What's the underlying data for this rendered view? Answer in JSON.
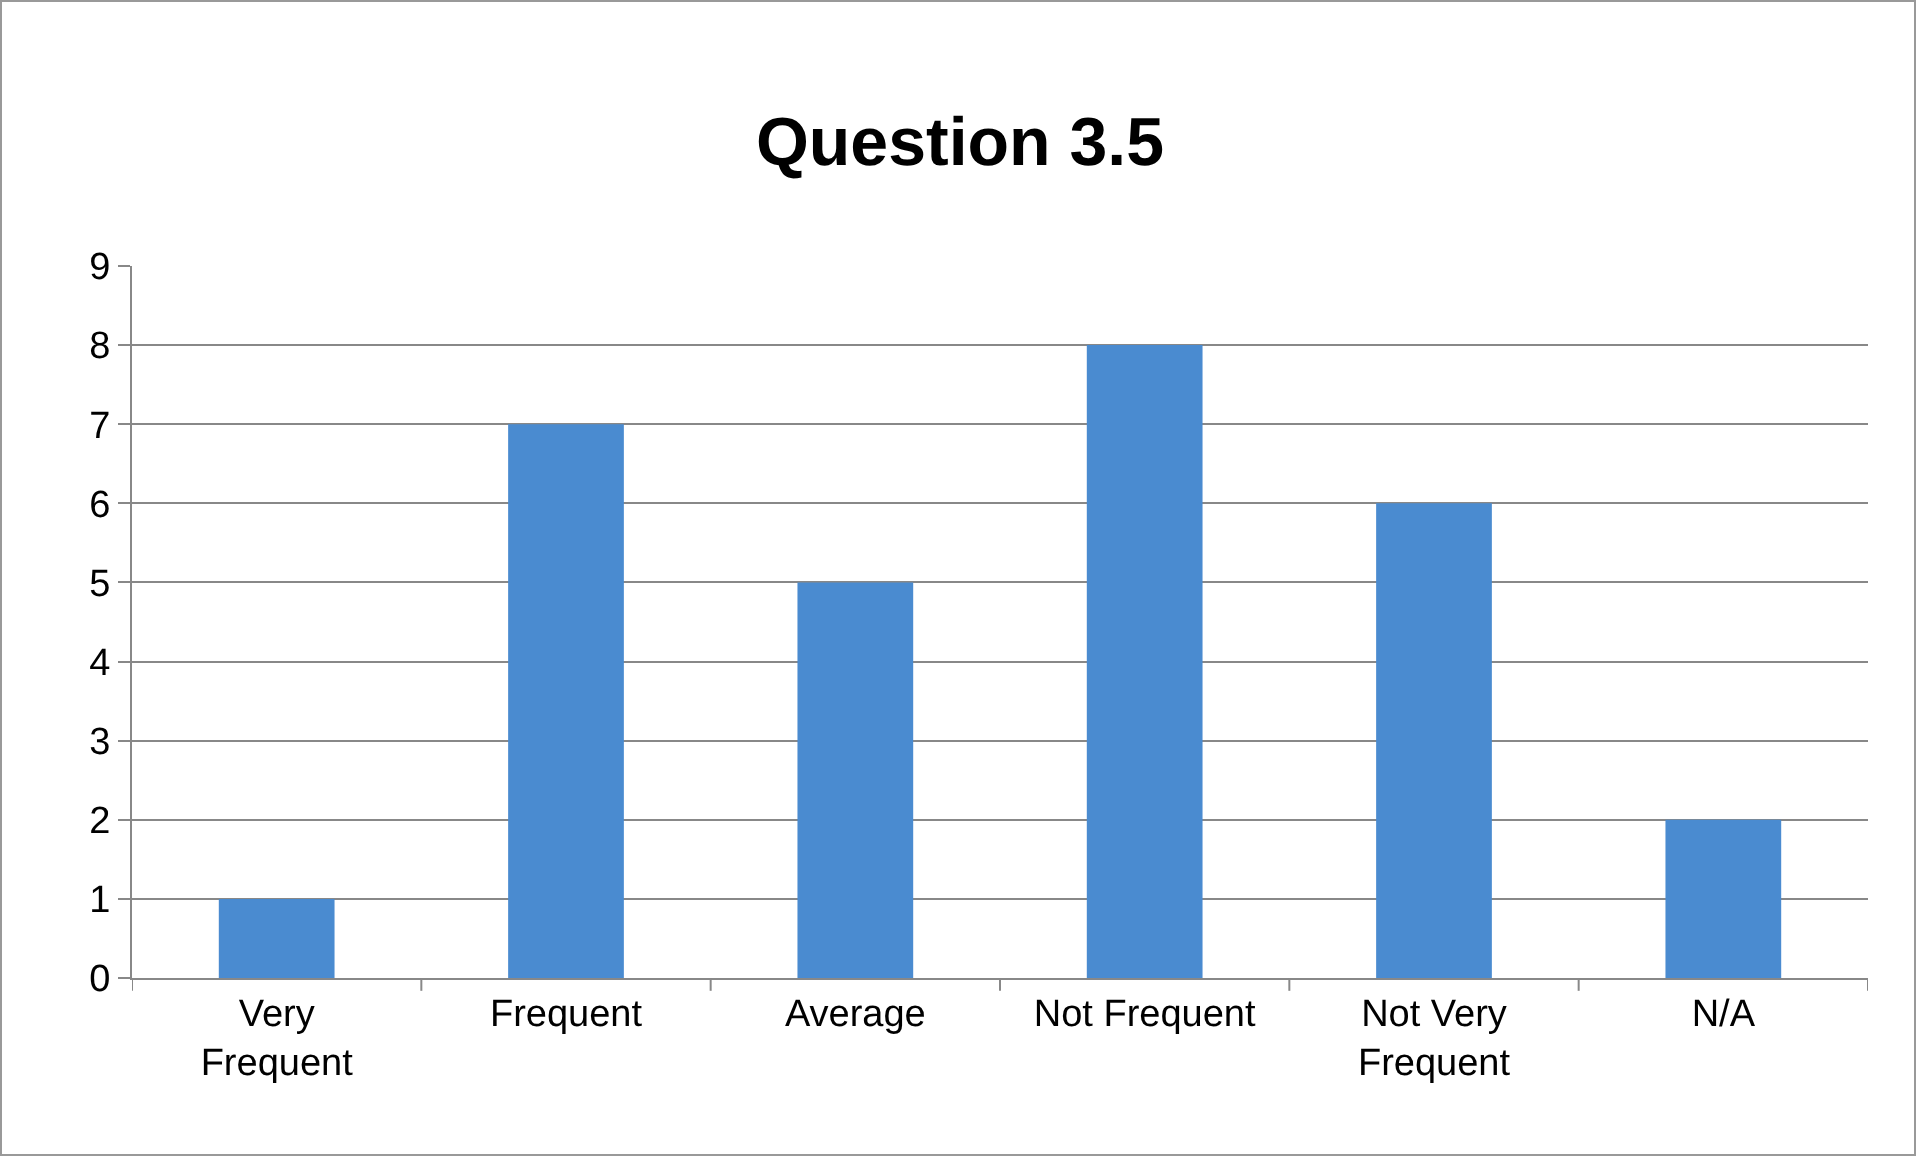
{
  "chart_data": {
    "type": "bar",
    "title": "Question 3.5",
    "categories": [
      "Very Frequent",
      "Frequent",
      "Average",
      "Not Frequent",
      "Not Very Frequent",
      "N/A"
    ],
    "values": [
      1,
      7,
      5,
      8,
      6,
      2
    ],
    "color": "#4a8bd0",
    "ylim": [
      0,
      9
    ],
    "yticks": [
      0,
      1,
      2,
      3,
      4,
      5,
      6,
      7,
      8,
      9
    ],
    "grid": "y"
  }
}
